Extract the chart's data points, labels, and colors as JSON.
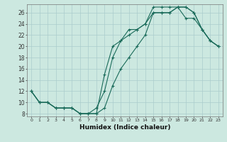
{
  "xlabel": "Humidex (Indice chaleur)",
  "bg_color": "#cce8e0",
  "grid_color": "#aacccc",
  "line_color": "#1a6b5a",
  "xlim": [
    -0.5,
    23.5
  ],
  "ylim": [
    7.5,
    27.5
  ],
  "xticks": [
    0,
    1,
    2,
    3,
    4,
    5,
    6,
    7,
    8,
    9,
    10,
    11,
    12,
    13,
    14,
    15,
    16,
    17,
    18,
    19,
    20,
    21,
    22,
    23
  ],
  "yticks": [
    8,
    10,
    12,
    14,
    16,
    18,
    20,
    22,
    24,
    26
  ],
  "line1_x": [
    0,
    1,
    2,
    3,
    4,
    5,
    6,
    7,
    8,
    9,
    10,
    11,
    12,
    13,
    14,
    15,
    16,
    17,
    18,
    19,
    20,
    21,
    22,
    23
  ],
  "line1_y": [
    12,
    10,
    10,
    9,
    9,
    9,
    8,
    8,
    8,
    9,
    13,
    16,
    18,
    20,
    22,
    26,
    26,
    26,
    27,
    27,
    26,
    23,
    21,
    20
  ],
  "line2_x": [
    0,
    1,
    2,
    3,
    4,
    5,
    6,
    7,
    8,
    9,
    10,
    11,
    12,
    13,
    14,
    15,
    16,
    17,
    18,
    19,
    20,
    21,
    22,
    23
  ],
  "line2_y": [
    12,
    10,
    10,
    9,
    9,
    9,
    8,
    8,
    8,
    15,
    20,
    21,
    22,
    23,
    24,
    26,
    26,
    26,
    27,
    25,
    25,
    23,
    21,
    20
  ],
  "line3_x": [
    0,
    1,
    2,
    3,
    4,
    5,
    6,
    7,
    8,
    9,
    10,
    11,
    12,
    13,
    14,
    15,
    16,
    17,
    18,
    19,
    20,
    21,
    22,
    23
  ],
  "line3_y": [
    12,
    10,
    10,
    9,
    9,
    9,
    8,
    8,
    9,
    12,
    18,
    21,
    23,
    23,
    24,
    27,
    27,
    27,
    27,
    27,
    26,
    23,
    21,
    20
  ]
}
